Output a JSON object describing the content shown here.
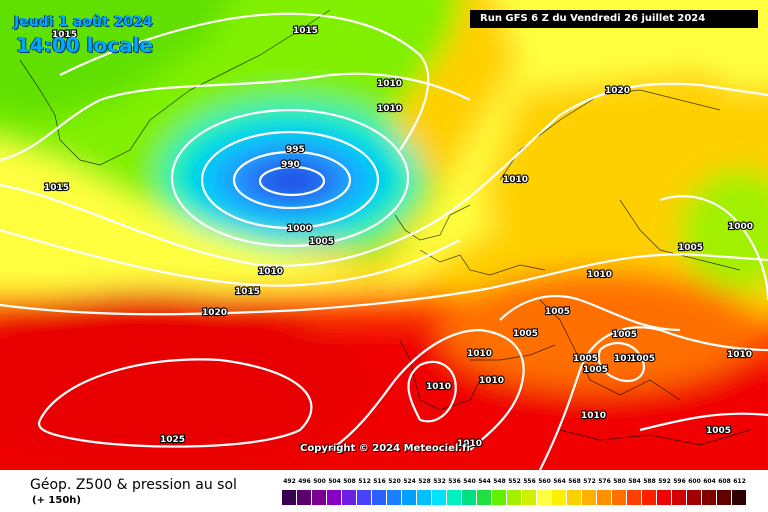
{
  "header": {
    "date": "Jeudi 1 août 2024",
    "time": "14:00 locale",
    "run": "Run GFS 6 Z du Vendredi 26 juillet 2024"
  },
  "map": {
    "low_center": "990",
    "isobar_labels": [
      "1015",
      "1015",
      "1015",
      "1010",
      "995",
      "990",
      "1000",
      "1005",
      "1010",
      "1015",
      "1020",
      "1025",
      "1020",
      "1010",
      "1005",
      "1010",
      "1000",
      "1005",
      "1005",
      "1005",
      "1005",
      "1010",
      "1010",
      "1010",
      "1005",
      "1005",
      "1010",
      "1005",
      "1010",
      "1010",
      "1010"
    ],
    "copyright": "Copyright © 2024 Meteociel.fr"
  },
  "footer": {
    "title": "Géop. Z500 & pression au sol",
    "step": "(+ 150h)"
  },
  "legend": {
    "values": [
      "492",
      "496",
      "500",
      "504",
      "508",
      "512",
      "516",
      "520",
      "524",
      "528",
      "532",
      "536",
      "540",
      "544",
      "548",
      "552",
      "556",
      "560",
      "564",
      "568",
      "572",
      "576",
      "580",
      "584",
      "588",
      "592",
      "596",
      "600",
      "604",
      "608",
      "612"
    ],
    "colors": [
      "#3a0050",
      "#5a006e",
      "#7a0094",
      "#8a00c8",
      "#6a20e0",
      "#4a40ff",
      "#2a60ff",
      "#1a80ff",
      "#00a0ff",
      "#00c0ff",
      "#00e0ff",
      "#00f0c0",
      "#00e080",
      "#20e040",
      "#60f000",
      "#a0f000",
      "#d0f000",
      "#ffff40",
      "#fff000",
      "#ffd000",
      "#ffb000",
      "#ff9000",
      "#ff7000",
      "#ff4000",
      "#ff2000",
      "#f00000",
      "#d00000",
      "#a00000",
      "#800000",
      "#600000",
      "#300000"
    ]
  }
}
